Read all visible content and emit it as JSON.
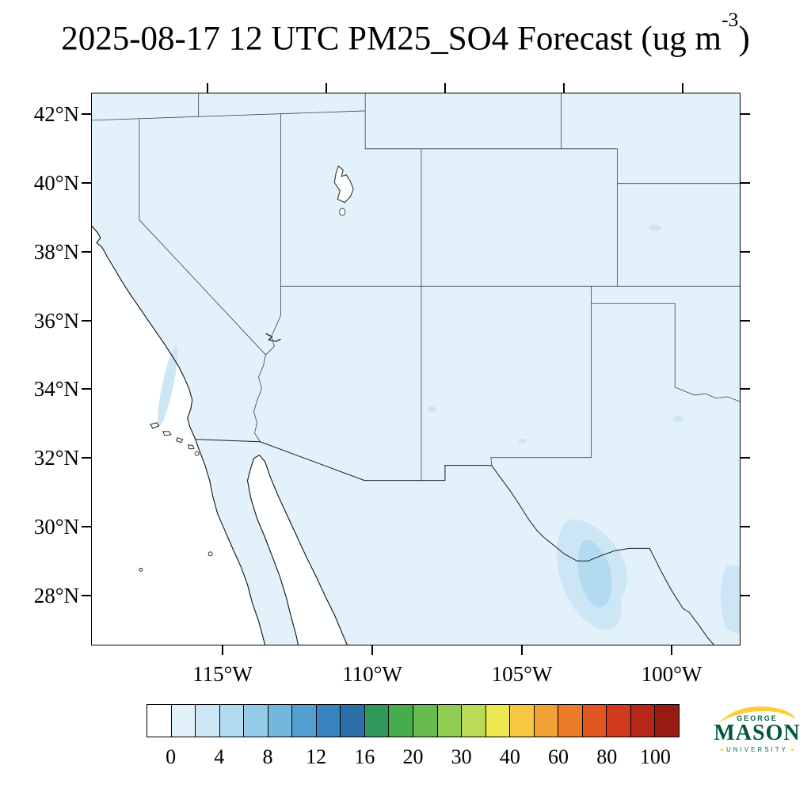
{
  "title": {
    "prefix": "2025-08-17 12 UTC PM25_SO4 Forecast (ug m",
    "exponent": "-3",
    "suffix": ")"
  },
  "map": {
    "lat_labels": [
      "42°N",
      "40°N",
      "38°N",
      "36°N",
      "34°N",
      "32°N",
      "30°N",
      "28°N"
    ],
    "lon_labels": [
      "115°W",
      "110°W",
      "105°W",
      "100°W"
    ],
    "land_fill_color": "#E3F1FA",
    "ocean_color": "#FEFFFF",
    "patch_color_light": "#CDE6F5",
    "patch_color_core": "#B2DAF0"
  },
  "colorbar": {
    "cell_colors": [
      "#FFFFFF",
      "#E3F1FA",
      "#CDE6F5",
      "#B2DAF0",
      "#96CBE8",
      "#74B7DE",
      "#539FD1",
      "#3885C0",
      "#2D6FA9",
      "#31985C",
      "#47AC4E",
      "#68BC4F",
      "#92CC53",
      "#BBDB56",
      "#EDE84F",
      "#F5C742",
      "#F2A137",
      "#EB7A29",
      "#E1561F",
      "#D0391D",
      "#B52819",
      "#971B13"
    ],
    "tick_labels": [
      "0",
      "4",
      "8",
      "12",
      "16",
      "20",
      "30",
      "40",
      "60",
      "80",
      "100"
    ]
  },
  "logo": {
    "top": "GEORGE",
    "main": "MASON",
    "bottom": "UNIVERSITY",
    "green": "#00693C",
    "gold": "#FFCC33"
  },
  "chart_data": {
    "type": "heatmap",
    "title": "2025-08-17 12 UTC PM25_SO4 Forecast (ug m-3)",
    "variable": "PM25_SO4 (PM2.5 sulfate) forecast",
    "units": "ug m-3",
    "forecast_time": "2025-08-17 12 UTC",
    "region": "Southwestern United States and northern Mexico",
    "lat_range_deg_n": [
      26.5,
      42.6
    ],
    "lon_range_deg_w": [
      119.5,
      97.7
    ],
    "x_tick_labels": [
      "115°W",
      "110°W",
      "105°W",
      "100°W"
    ],
    "y_tick_labels": [
      "28°N",
      "30°N",
      "32°N",
      "34°N",
      "36°N",
      "38°N",
      "40°N",
      "42°N"
    ],
    "contour_levels": [
      0,
      2,
      4,
      6,
      8,
      10,
      12,
      14,
      16,
      18,
      20,
      25,
      30,
      35,
      40,
      50,
      60,
      70,
      80,
      90,
      100
    ],
    "colorbar_tick_labels": [
      0,
      4,
      8,
      12,
      16,
      20,
      30,
      40,
      60,
      80,
      100
    ],
    "legend_position": "horizontal colorbar below map",
    "values_summary": "Field is nearly uniform at 0-2 ug m-3 (palest blue) over the whole land domain; Pacific Ocean and Gulf of California near 0 (white). A localized maximum of about 2-6 ug m-3 appears over west Texas / Big Bend region near 102W 30N; smaller 2-4 ug m-3 patches occur along the central California coast, near the Colorado/Kansas border, in the Texas panhandle, and at the lower-right map edge."
  }
}
